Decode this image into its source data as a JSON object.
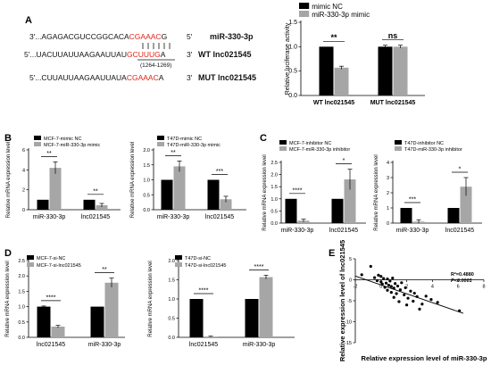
{
  "panels": {
    "A": "A",
    "B": "B",
    "C": "C",
    "D": "D",
    "E": "E"
  },
  "sequences": [
    {
      "pre": "3'...AGAGACGUCCGGCACA",
      "red": "CGAAAC",
      "post": "G",
      "suffix": "5'",
      "label": "miR-330-3p"
    },
    {
      "pre": "5'...UACUUAUUAAGAAUUAU",
      "red": "GCUUUG",
      "post": "A",
      "suffix": "3'",
      "label": "WT lnc021545"
    },
    {
      "pre": "5'...CUUAUUAAGAAUUAUA",
      "red": "CGAAAC",
      "post": "A",
      "suffix": "3'",
      "label": "MUT lnc021545"
    }
  ],
  "seq_position": "(1264-1269)",
  "colors": {
    "black": "#000000",
    "gray": "#a6a6a6",
    "red": "#e2231a"
  },
  "chart_data": [
    {
      "id": "A",
      "type": "bar",
      "categories": [
        "WT lnc021545",
        "MUT lnc021545"
      ],
      "series": [
        {
          "name": "mimic NC",
          "values": [
            1.0,
            1.0
          ],
          "errors": [
            0.0,
            0.03
          ]
        },
        {
          "name": "miR-330-3p mimic",
          "values": [
            0.57,
            1.0
          ],
          "errors": [
            0.03,
            0.03
          ]
        }
      ],
      "ylabel": "Relative luciferase activity",
      "ylim": [
        0,
        1.5
      ],
      "yticks": [
        "0.0",
        "0.5",
        "1.0",
        "1.5"
      ],
      "significance": [
        "**",
        "ns"
      ],
      "legend": "top"
    },
    {
      "id": "B1",
      "type": "bar",
      "categories": [
        "miR-330-3p",
        "lnc021545"
      ],
      "series": [
        {
          "name": "MCF-7-mimic NC",
          "values": [
            1.0,
            1.0
          ],
          "errors": [
            0.0,
            0.0
          ]
        },
        {
          "name": "MCF-7-miR-330-3p mimic",
          "values": [
            4.2,
            0.45
          ],
          "errors": [
            0.6,
            0.18
          ]
        }
      ],
      "ylabel": "Relative mRNA expression level",
      "ylim": [
        0,
        6
      ],
      "yticks": [
        "0",
        "2",
        "4",
        "6"
      ],
      "significance": [
        "**",
        "**"
      ],
      "legend": "top-left"
    },
    {
      "id": "B2",
      "type": "bar",
      "categories": [
        "miR-330-3p",
        "lnc021545"
      ],
      "series": [
        {
          "name": "T47D-mimic NC",
          "values": [
            1.0,
            1.0
          ],
          "errors": [
            0.0,
            0.0
          ]
        },
        {
          "name": "T47D-miR-330-3p mimic",
          "values": [
            1.45,
            0.35
          ],
          "errors": [
            0.18,
            0.1
          ]
        }
      ],
      "ylabel": "Relative mRNA expression level",
      "ylim": [
        0,
        2.0
      ],
      "yticks": [
        "0.0",
        "0.5",
        "1.0",
        "1.5",
        "2.0"
      ],
      "significance": [
        "**",
        "***"
      ],
      "legend": "top-left"
    },
    {
      "id": "C1",
      "type": "bar",
      "categories": [
        "miR-330-3p",
        "lnc021545"
      ],
      "series": [
        {
          "name": "MCF-7-inhibitor NC",
          "values": [
            1.0,
            1.0
          ],
          "errors": [
            0.0,
            0.0
          ]
        },
        {
          "name": "MCF-7-miR-330-3p inhibitor",
          "values": [
            0.1,
            1.8
          ],
          "errors": [
            0.06,
            0.42
          ]
        }
      ],
      "ylabel": "Relative mRNA expression level",
      "ylim": [
        0,
        2.5
      ],
      "yticks": [
        "0.0",
        "0.5",
        "1.0",
        "1.5",
        "2.0",
        "2.5"
      ],
      "significance": [
        "****",
        "*"
      ],
      "legend": "top-left"
    },
    {
      "id": "C2",
      "type": "bar",
      "categories": [
        "miR-330-3p",
        "lnc021545"
      ],
      "series": [
        {
          "name": "T47D-inhibitor NC",
          "values": [
            1.0,
            1.0
          ],
          "errors": [
            0.0,
            0.0
          ]
        },
        {
          "name": "T47D-miR-330-3p inhibitor",
          "values": [
            0.1,
            2.4
          ],
          "errors": [
            0.12,
            0.6
          ]
        }
      ],
      "ylabel": "Relative mRNA expression level",
      "ylim": [
        0,
        4
      ],
      "yticks": [
        "0",
        "1",
        "2",
        "3",
        "4"
      ],
      "significance": [
        "***",
        "*"
      ],
      "legend": "top-left"
    },
    {
      "id": "D1",
      "type": "bar",
      "categories": [
        "lnc021545",
        "miR-330-3p"
      ],
      "series": [
        {
          "name": "MCF-7-si-NC",
          "values": [
            1.0,
            1.0
          ],
          "errors": [
            0.02,
            0.0
          ]
        },
        {
          "name": "MCF-7-si-lnc021545",
          "values": [
            0.35,
            1.78
          ],
          "errors": [
            0.04,
            0.15
          ]
        }
      ],
      "ylabel": "Relative mRNA expression level",
      "ylim": [
        0,
        2.5
      ],
      "yticks": [
        "0.0",
        "0.5",
        "1.0",
        "1.5",
        "2.0",
        "2.5"
      ],
      "significance": [
        "****",
        "**"
      ],
      "legend": "top-left"
    },
    {
      "id": "D2",
      "type": "bar",
      "categories": [
        "lnc021545",
        "miR-330-3p"
      ],
      "series": [
        {
          "name": "T47D-si-NC",
          "values": [
            1.0,
            1.0
          ],
          "errors": [
            0.0,
            0.0
          ]
        },
        {
          "name": "T47D-si-lnc021545",
          "values": [
            0.02,
            1.57
          ],
          "errors": [
            0.01,
            0.05
          ]
        }
      ],
      "ylabel": "Relative mRNA expression level",
      "ylim": [
        0,
        2.0
      ],
      "yticks": [
        "0.0",
        "0.5",
        "1.0",
        "1.5",
        "2.0"
      ],
      "significance": [
        "****",
        "****"
      ],
      "legend": "top-left"
    },
    {
      "id": "E",
      "type": "scatter",
      "xlabel": "Relative expression level of miR-330-3p",
      "ylabel": "Relative expression level of lnc021545",
      "xlim": [
        -2,
        8
      ],
      "ylim": [
        -15,
        5
      ],
      "xticks": [
        "-2",
        "0",
        "2",
        "4",
        "6",
        "8"
      ],
      "yticks": [
        "-15",
        "-10",
        "-5",
        "0",
        "5"
      ],
      "annotation": [
        "R²=0.4880",
        "P<0.0001"
      ],
      "points": [
        [
          -1.5,
          1.2
        ],
        [
          -0.8,
          3.2
        ],
        [
          -0.5,
          0.5
        ],
        [
          -0.3,
          -0.2
        ],
        [
          -0.2,
          1.1
        ],
        [
          0.0,
          0.8
        ],
        [
          0.0,
          -0.5
        ],
        [
          0.1,
          -1.0
        ],
        [
          0.2,
          0.3
        ],
        [
          0.3,
          -1.8
        ],
        [
          0.4,
          -0.8
        ],
        [
          0.5,
          0.2
        ],
        [
          0.5,
          -2.5
        ],
        [
          0.6,
          -1.3
        ],
        [
          0.7,
          -0.3
        ],
        [
          0.8,
          -3.0
        ],
        [
          0.8,
          -1.6
        ],
        [
          0.9,
          0.4
        ],
        [
          1.0,
          -2.0
        ],
        [
          1.0,
          -4.2
        ],
        [
          1.1,
          -0.9
        ],
        [
          1.2,
          -3.3
        ],
        [
          1.3,
          -1.5
        ],
        [
          1.4,
          -5.2
        ],
        [
          1.5,
          -2.4
        ],
        [
          1.6,
          -0.7
        ],
        [
          1.8,
          -3.6
        ],
        [
          1.9,
          -1.9
        ],
        [
          2.0,
          -6.0
        ],
        [
          2.1,
          -4.4
        ],
        [
          2.3,
          -2.7
        ],
        [
          2.5,
          -5.1
        ],
        [
          2.6,
          -3.2
        ],
        [
          2.8,
          -4.0
        ],
        [
          3.0,
          -7.0
        ],
        [
          3.2,
          -5.8
        ],
        [
          3.5,
          -3.9
        ],
        [
          3.9,
          -4.7
        ],
        [
          4.4,
          -5.4
        ],
        [
          6.1,
          -7.4
        ]
      ],
      "fit": {
        "x": [
          -2,
          6.4
        ],
        "y": [
          0.9,
          -8.0
        ]
      }
    }
  ]
}
